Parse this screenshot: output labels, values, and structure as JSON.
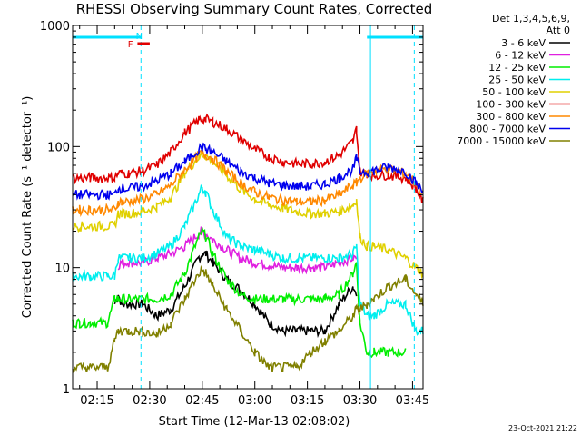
{
  "chart_data": {
    "type": "line",
    "title": "RHESSI Observing Summary Count Rates, Corrected",
    "xlabel": "Start Time (12-Mar-13 02:08:02)",
    "ylabel": "Corrected Count Rate (s⁻¹ detector⁻¹)",
    "x_unit": "minutes after 02:08:02",
    "xlim": [
      0,
      100
    ],
    "ylim": [
      1,
      1000
    ],
    "y_scale": "log",
    "x_ticks": [
      {
        "t": 7,
        "label": "02:15"
      },
      {
        "t": 22,
        "label": "02:30"
      },
      {
        "t": 37,
        "label": "02:45"
      },
      {
        "t": 52,
        "label": "03:00"
      },
      {
        "t": 67,
        "label": "03:15"
      },
      {
        "t": 82,
        "label": "03:30"
      },
      {
        "t": 97,
        "label": "03:45"
      }
    ],
    "y_ticks": [
      {
        "v": 1,
        "label": "1"
      },
      {
        "v": 10,
        "label": "10"
      },
      {
        "v": 100,
        "label": "100"
      },
      {
        "v": 1000,
        "label": "1000"
      }
    ],
    "legend_header": [
      "Det 1,3,4,5,6,9,",
      "Att 0"
    ],
    "legend_position": "right",
    "series": [
      {
        "name": "3 - 6 keV",
        "color": "#000000",
        "x": [
          0,
          2,
          5,
          10,
          12,
          13,
          14,
          16,
          20,
          24,
          28,
          32,
          36,
          37,
          38,
          40,
          44,
          48,
          52,
          56,
          60,
          64,
          68,
          72,
          76,
          80,
          81,
          82
        ],
        "y": [
          null,
          null,
          null,
          null,
          5,
          6,
          5,
          5,
          5,
          4,
          4.5,
          7,
          12,
          13,
          13,
          11,
          8,
          6.5,
          5,
          3.5,
          3,
          3,
          3,
          3,
          5,
          7,
          6,
          null
        ]
      },
      {
        "name": "6 - 12 keV",
        "color": "#e020e0",
        "x": [
          0,
          2,
          5,
          10,
          12,
          13,
          14,
          16,
          20,
          24,
          28,
          32,
          36,
          37,
          38,
          40,
          44,
          48,
          52,
          56,
          60,
          64,
          68,
          72,
          76,
          80,
          81,
          82
        ],
        "y": [
          null,
          null,
          null,
          null,
          null,
          10.5,
          11,
          11,
          11,
          12,
          13,
          15,
          19,
          20,
          19,
          17,
          14,
          12,
          11,
          10.5,
          10,
          10,
          10,
          10,
          11,
          12,
          12,
          null
        ]
      },
      {
        "name": "12 - 25 keV",
        "color": "#00ee00",
        "x": [
          0,
          2,
          5,
          10,
          12,
          13,
          14,
          16,
          20,
          24,
          28,
          32,
          36,
          37,
          38,
          40,
          44,
          48,
          52,
          56,
          60,
          64,
          68,
          72,
          76,
          80,
          81,
          82,
          84,
          86,
          90,
          95
        ],
        "y": [
          3.5,
          3.5,
          3.5,
          3.5,
          5.5,
          5.5,
          5.5,
          5.5,
          5.5,
          5.5,
          6,
          9,
          18,
          20,
          18,
          13,
          8,
          6,
          5.5,
          5.5,
          5.5,
          5.5,
          5.5,
          5.5,
          6,
          9,
          11,
          3.5,
          2,
          2,
          2,
          2
        ]
      },
      {
        "name": "25 - 50 keV",
        "color": "#00eeee",
        "x": [
          0,
          2,
          5,
          10,
          12,
          13,
          14,
          16,
          20,
          24,
          28,
          32,
          36,
          37,
          38,
          40,
          44,
          48,
          52,
          56,
          60,
          64,
          68,
          72,
          76,
          80,
          81,
          82,
          84,
          86,
          90,
          95,
          98,
          100
        ],
        "y": [
          8.5,
          8.5,
          8.5,
          8.5,
          8.5,
          12,
          12,
          12,
          12,
          13,
          15,
          22,
          40,
          46,
          42,
          30,
          18,
          15,
          14,
          13,
          12,
          12,
          12,
          12,
          12,
          13,
          15,
          5,
          4,
          4,
          5,
          5,
          3,
          3
        ]
      },
      {
        "name": "50 - 100 keV",
        "color": "#e0d000",
        "x": [
          0,
          2,
          5,
          10,
          12,
          13,
          14,
          16,
          20,
          24,
          28,
          32,
          36,
          37,
          38,
          40,
          44,
          48,
          52,
          56,
          60,
          64,
          68,
          72,
          76,
          80,
          81,
          82,
          84,
          86,
          90,
          95,
          98,
          100
        ],
        "y": [
          22,
          22,
          22,
          22,
          22,
          28,
          28,
          28,
          29,
          32,
          38,
          60,
          82,
          86,
          84,
          75,
          58,
          44,
          37,
          33,
          31,
          29,
          28,
          28,
          29,
          33,
          36,
          18,
          15,
          15,
          14,
          12,
          10,
          9
        ]
      },
      {
        "name": "100 - 300 keV",
        "color": "#e00000",
        "x": [
          0,
          2,
          5,
          10,
          12,
          13,
          14,
          16,
          20,
          24,
          28,
          32,
          36,
          37,
          38,
          40,
          44,
          48,
          52,
          56,
          60,
          64,
          68,
          72,
          76,
          80,
          81,
          82,
          84,
          86,
          90,
          95,
          98,
          100
        ],
        "y": [
          55,
          55,
          55,
          55,
          55,
          60,
          60,
          60,
          63,
          70,
          90,
          130,
          165,
          170,
          168,
          160,
          140,
          115,
          95,
          82,
          75,
          72,
          72,
          75,
          85,
          110,
          140,
          62,
          60,
          58,
          58,
          55,
          45,
          35
        ]
      },
      {
        "name": "300 - 800 keV",
        "color": "#ff8800",
        "x": [
          0,
          2,
          5,
          10,
          12,
          13,
          14,
          16,
          20,
          24,
          28,
          32,
          36,
          37,
          38,
          40,
          44,
          48,
          52,
          56,
          60,
          64,
          68,
          72,
          76,
          80,
          81,
          82,
          84,
          86,
          90,
          95,
          98,
          100
        ],
        "y": [
          30,
          30,
          30,
          30,
          30,
          35,
          35,
          35,
          37,
          40,
          48,
          65,
          85,
          88,
          86,
          80,
          62,
          50,
          42,
          38,
          36,
          35,
          35,
          36,
          40,
          48,
          50,
          55,
          60,
          63,
          66,
          60,
          50,
          40
        ]
      },
      {
        "name": "800 - 7000 keV",
        "color": "#0000ee",
        "x": [
          0,
          2,
          5,
          10,
          12,
          13,
          14,
          16,
          20,
          24,
          28,
          32,
          36,
          37,
          38,
          40,
          44,
          48,
          52,
          56,
          60,
          64,
          68,
          72,
          76,
          80,
          81,
          82,
          84,
          86,
          90,
          95,
          98,
          100
        ],
        "y": [
          40,
          40,
          40,
          40,
          40,
          45,
          45,
          45,
          47,
          52,
          60,
          75,
          95,
          98,
          96,
          90,
          75,
          62,
          55,
          50,
          48,
          47,
          47,
          49,
          55,
          65,
          80,
          62,
          62,
          63,
          68,
          62,
          50,
          42
        ]
      },
      {
        "name": "7000 - 15000 keV",
        "color": "#808000",
        "x": [
          0,
          2,
          5,
          10,
          12,
          13,
          14,
          16,
          20,
          24,
          28,
          32,
          36,
          37,
          38,
          40,
          44,
          48,
          52,
          56,
          60,
          64,
          68,
          72,
          76,
          80,
          81,
          82,
          84,
          86,
          90,
          95,
          98,
          100
        ],
        "y": [
          1.5,
          1.5,
          1.5,
          1.5,
          2.5,
          3,
          3,
          3,
          3,
          2.8,
          3.5,
          5.5,
          9,
          9.5,
          9,
          7,
          4.5,
          3,
          2,
          1.5,
          1.5,
          1.5,
          2,
          2.5,
          3,
          4,
          4.5,
          4.5,
          5,
          5.5,
          7,
          8,
          6,
          5
        ]
      }
    ],
    "attenuator_bar": {
      "color": "#00e0ff",
      "segments": [
        [
          0,
          19.5
        ],
        [
          84,
          100
        ]
      ]
    },
    "flag_markers": [
      {
        "t": 16.5,
        "label": "F",
        "color": "#e00000"
      },
      {
        "t": 19,
        "label": "N",
        "color": "#00e0ff"
      }
    ],
    "flag_bar": {
      "color": "#e00000",
      "t0": 18.5,
      "t1": 22
    },
    "vertical_lines": [
      {
        "t": 19.5,
        "dashed": true
      },
      {
        "t": 85,
        "dashed": false
      },
      {
        "t": 97.5,
        "dashed": true
      }
    ],
    "timestamp": "23-Oct-2021 21:22"
  }
}
